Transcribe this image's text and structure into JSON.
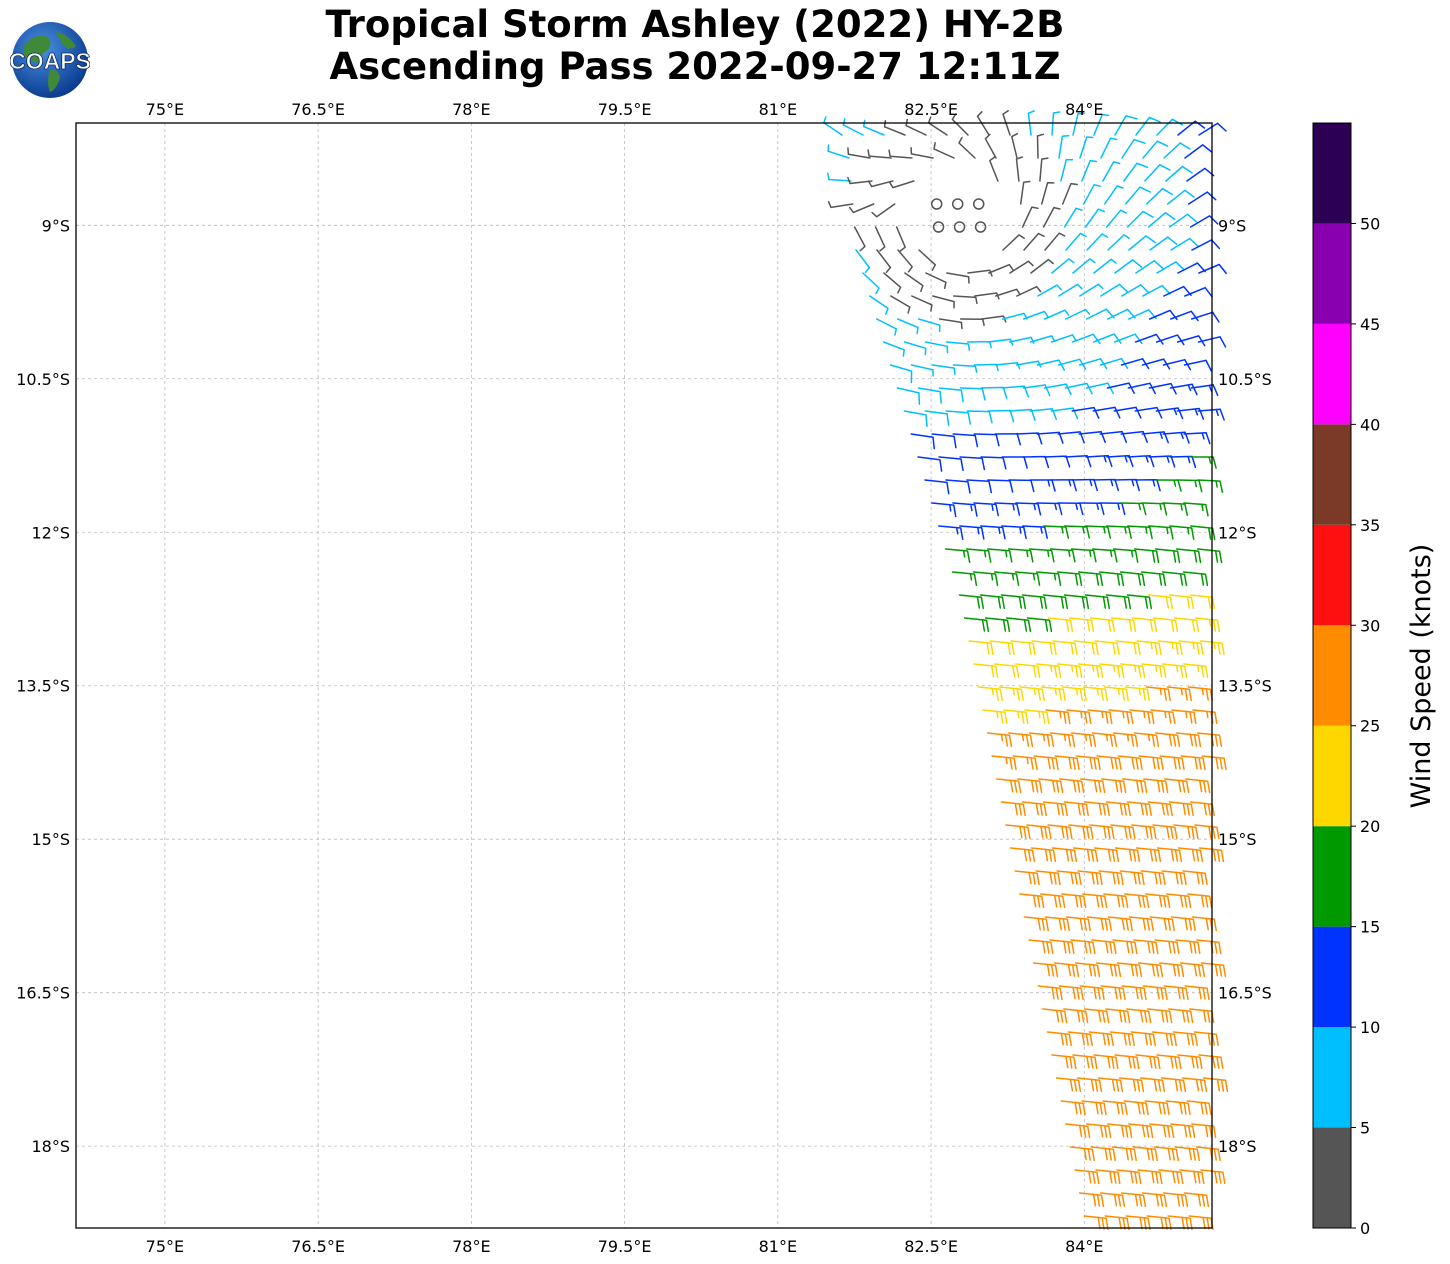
{
  "header": {
    "title_line1": "Tropical Storm Ashley (2022) HY-2B",
    "title_line2": "Ascending Pass 2022-09-27 12:11Z",
    "logo_text": "COAPS"
  },
  "chart_data": {
    "type": "wind-barb-map",
    "title": "Tropical Storm Ashley (2022) HY-2B Ascending Pass 2022-09-27 12:11Z",
    "lon_range": [
      74.13,
      85.25
    ],
    "lat_range": [
      -18.8,
      -8.0
    ],
    "lon_ticks": [
      75,
      76.5,
      78,
      79.5,
      81,
      82.5,
      84
    ],
    "lon_tick_labels": [
      "75°E",
      "76.5°E",
      "78°E",
      "79.5°E",
      "81°E",
      "82.5°E",
      "84°E"
    ],
    "lat_ticks": [
      -9,
      -10.5,
      -12,
      -13.5,
      -15,
      -16.5,
      -18
    ],
    "lat_tick_labels": [
      "9°S",
      "10.5°S",
      "12°S",
      "13.5°S",
      "15°S",
      "16.5°S",
      "18°S"
    ],
    "grid": true,
    "colorbar": {
      "label": "Wind Speed (knots)",
      "bounds": [
        0,
        5,
        10,
        15,
        20,
        25,
        30,
        35,
        40,
        45,
        50,
        55
      ],
      "tick_labels": [
        "0",
        "5",
        "10",
        "15",
        "20",
        "25",
        "30",
        "35",
        "40",
        "45",
        "50"
      ],
      "colors": [
        "#555555",
        "#00bfff",
        "#0033ff",
        "#009900",
        "#ffd700",
        "#ff8c00",
        "#ff1010",
        "#7b3a28",
        "#ff00ff",
        "#8800b0",
        "#2b0055"
      ]
    },
    "wind_zones": [
      {
        "speed_range": "calm",
        "approx_lat": [
          -9.1,
          -8.6
        ],
        "approx_lon": [
          82.4,
          83.7
        ],
        "color": "#555555"
      },
      {
        "speed_range": "0-5",
        "approx_lat": [
          -10.2,
          -8.1
        ],
        "approx_lon": [
          82.2,
          84.0
        ],
        "color": "#555555"
      },
      {
        "speed_range": "5-10",
        "approx_lat": [
          -11.0,
          -8.0
        ],
        "approx_lon": [
          81.6,
          84.6
        ],
        "color": "#00bfff"
      },
      {
        "speed_range": "10-15",
        "approx_lat": [
          -12.8,
          -8.0
        ],
        "approx_lon": [
          82.0,
          85.25
        ],
        "color": "#0033ff"
      },
      {
        "speed_range": "15-20",
        "approx_lat": [
          -14.5,
          -10.2
        ],
        "approx_lon": [
          82.8,
          85.25
        ],
        "color": "#009900"
      },
      {
        "speed_range": "20-25",
        "approx_lat": [
          -16.3,
          -13.8
        ],
        "approx_lon": [
          83.0,
          85.25
        ],
        "color": "#ffd700"
      },
      {
        "speed_range": "25-30",
        "approx_lat": [
          -18.8,
          -14.8
        ],
        "approx_lon": [
          83.2,
          85.25
        ],
        "color": "#ff8c00"
      }
    ]
  }
}
